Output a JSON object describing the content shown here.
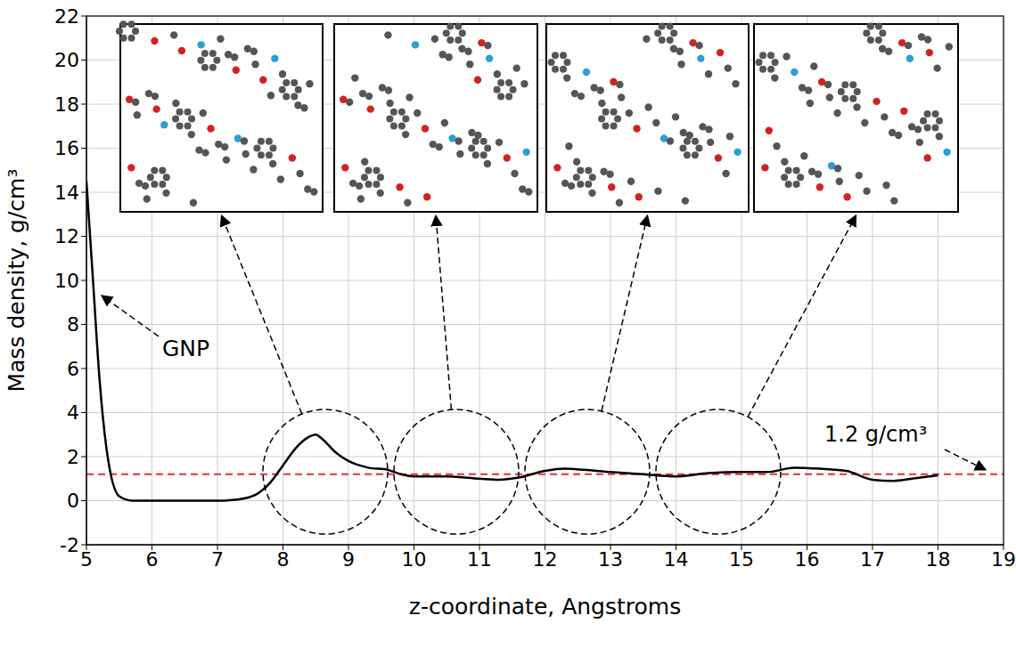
{
  "chart_data": {
    "type": "line",
    "x_label": "z-coordinate, Angstroms",
    "y_label": "Mass density, g/cm³",
    "x": [
      5.0,
      5.1,
      5.2,
      5.3,
      5.5,
      5.7,
      6.0,
      7.0,
      7.3,
      7.6,
      7.8,
      8.0,
      8.2,
      8.4,
      8.5,
      8.6,
      8.8,
      9.0,
      9.3,
      9.6,
      9.8,
      10.0,
      10.5,
      11.0,
      11.3,
      11.6,
      12.0,
      12.3,
      12.6,
      13.0,
      13.5,
      14.0,
      14.5,
      15.0,
      15.4,
      15.8,
      16.2,
      16.6,
      17.0,
      17.3,
      17.6,
      18.0
    ],
    "values": [
      14.5,
      10.0,
      5.5,
      2.5,
      0.2,
      0.0,
      0.0,
      0.0,
      0.05,
      0.3,
      0.8,
      1.6,
      2.4,
      2.9,
      3.0,
      2.8,
      2.2,
      1.8,
      1.5,
      1.4,
      1.2,
      1.1,
      1.1,
      1.0,
      0.95,
      1.05,
      1.35,
      1.45,
      1.4,
      1.3,
      1.2,
      1.1,
      1.25,
      1.3,
      1.3,
      1.5,
      1.45,
      1.35,
      0.95,
      0.9,
      1.0,
      1.15
    ],
    "color": "#000000",
    "xlim": [
      5,
      19
    ],
    "xticks": [
      5,
      6,
      7,
      8,
      9,
      10,
      11,
      12,
      13,
      14,
      15,
      16,
      17,
      18,
      19
    ],
    "ylim": [
      -2,
      22
    ],
    "yticks": [
      -2,
      0,
      2,
      4,
      6,
      8,
      10,
      12,
      14,
      16,
      18,
      20,
      22
    ],
    "grid": true,
    "reference_line": {
      "value": 1.2,
      "label": "1.2 g/cm³",
      "color": "#e8302a",
      "line_style": "dashed"
    },
    "annotations": [
      {
        "text": "GNP"
      }
    ]
  }
}
